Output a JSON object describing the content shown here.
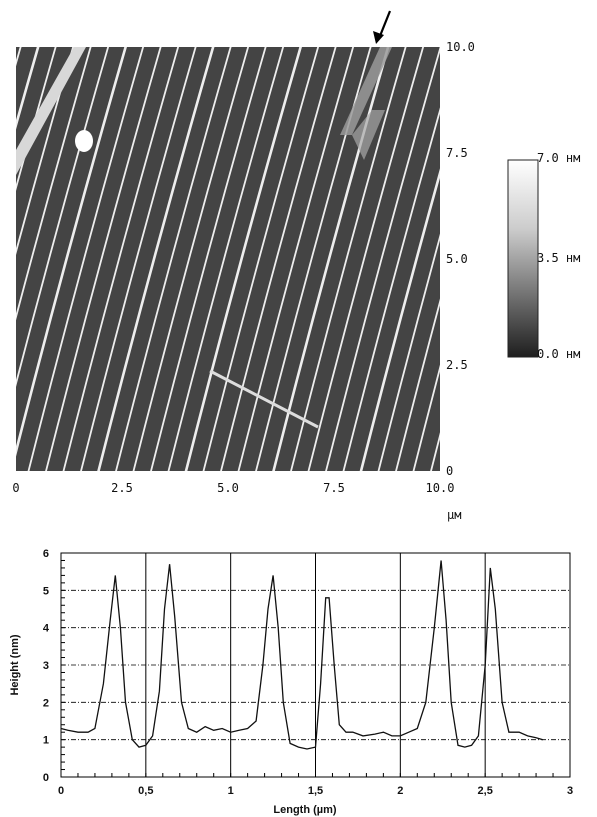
{
  "chart_data": [
    {
      "type": "heatmap",
      "title": "",
      "x_ticks": [
        "0",
        "2.5",
        "5.0",
        "7.5",
        "10.0"
      ],
      "y_ticks": [
        "0",
        "2.5",
        "5.0",
        "7.5",
        "10.0"
      ],
      "x_unit": "µм",
      "xlim": [
        0,
        10
      ],
      "ylim": [
        0,
        10
      ],
      "colorbar": {
        "ticks": [
          "7.0 нм",
          "3.5 нм",
          "0.0 нм"
        ],
        "range": [
          0,
          7
        ],
        "unit": "нм"
      },
      "colors": {
        "background": "#444444",
        "steps": "#eeeeee",
        "line": "#dddddd",
        "arrow": "#000000"
      },
      "annotations": [
        "arrow marking a step bunch near the top edge",
        "white line marking the profile section"
      ]
    },
    {
      "type": "line",
      "xlabel": "Length (µm)",
      "ylabel": "Height (nm)",
      "xlim": [
        0,
        3
      ],
      "ylim": [
        0,
        6
      ],
      "x_tick_labels": [
        "0",
        "0,5",
        "1",
        "1,5",
        "2",
        "2,5",
        "3"
      ],
      "y_tick_labels": [
        "0",
        "1",
        "2",
        "3",
        "4",
        "5",
        "6"
      ],
      "grid": true,
      "series": [
        {
          "x": [
            0.0,
            0.04,
            0.1,
            0.16,
            0.2,
            0.25,
            0.29,
            0.32,
            0.35,
            0.38,
            0.42,
            0.46,
            0.5,
            0.54,
            0.58,
            0.61,
            0.64,
            0.67,
            0.71,
            0.75,
            0.8,
            0.85,
            0.9,
            0.95,
            1.0,
            1.05,
            1.1,
            1.15,
            1.19,
            1.22,
            1.25,
            1.28,
            1.31,
            1.35,
            1.4,
            1.45,
            1.5,
            1.53,
            1.56,
            1.58,
            1.61,
            1.64,
            1.68,
            1.72,
            1.78,
            1.85,
            1.9,
            1.95,
            2.0,
            2.05,
            2.1,
            2.15,
            2.2,
            2.24,
            2.27,
            2.3,
            2.34,
            2.38,
            2.42,
            2.46,
            2.5,
            2.53,
            2.56,
            2.6,
            2.64,
            2.7,
            2.75,
            2.8,
            2.84
          ],
          "y": [
            1.3,
            1.25,
            1.2,
            1.2,
            1.3,
            2.5,
            4.2,
            5.4,
            4.0,
            2.0,
            1.0,
            0.8,
            0.85,
            1.1,
            2.3,
            4.5,
            5.7,
            4.3,
            2.0,
            1.3,
            1.2,
            1.35,
            1.25,
            1.3,
            1.2,
            1.25,
            1.3,
            1.5,
            3.0,
            4.5,
            5.4,
            4.0,
            2.0,
            0.9,
            0.8,
            0.75,
            0.8,
            2.5,
            4.8,
            4.8,
            3.0,
            1.4,
            1.2,
            1.2,
            1.1,
            1.15,
            1.2,
            1.1,
            1.1,
            1.2,
            1.3,
            2.0,
            4.0,
            5.8,
            4.2,
            2.0,
            0.85,
            0.8,
            0.85,
            1.1,
            3.0,
            5.6,
            4.5,
            2.0,
            1.2,
            1.2,
            1.1,
            1.05,
            1.0
          ]
        }
      ]
    }
  ]
}
